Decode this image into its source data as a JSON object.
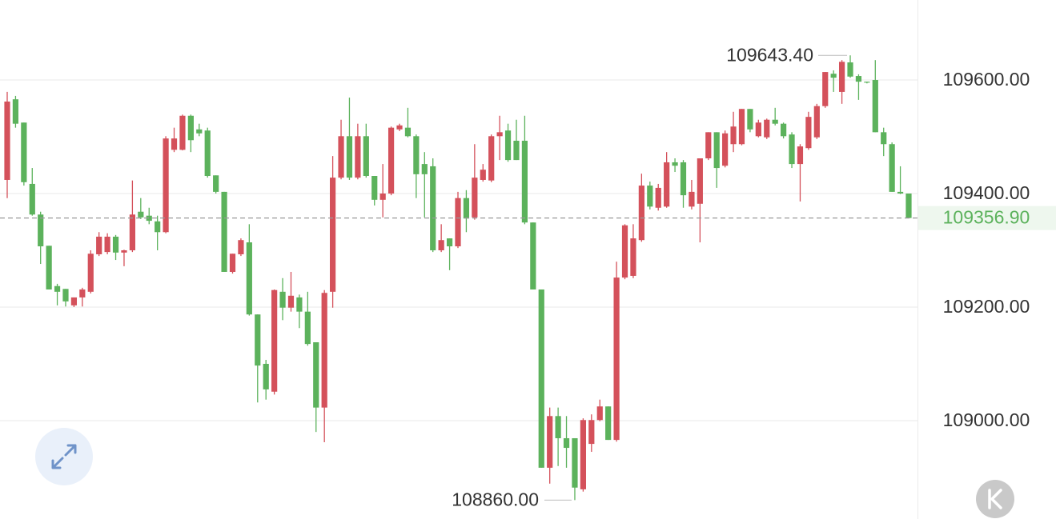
{
  "chart_data": {
    "type": "candlestick",
    "open": [
      109424,
      109566,
      109525,
      109417,
      109363,
      109308,
      109237,
      109232,
      109203,
      109217,
      109227,
      109293,
      109297,
      109324,
      109296,
      109300,
      109368,
      109361,
      109351,
      109332,
      109477,
      109477,
      109537,
      109513,
      109511,
      109432,
      109403,
      109262,
      109293,
      109314,
      109187,
      109100,
      109051,
      109227,
      109199,
      109217,
      109192,
      109138,
      109023,
      109227,
      109428,
      109501,
      109428,
      109501,
      109431,
      109389,
      109400,
      109513,
      109516,
      109501,
      109452,
      109448,
      109300,
      109321,
      109307,
      109392,
      109358,
      109424,
      109423,
      109501,
      109511,
      109493,
      109493,
      109349,
      109231,
      108917,
      109008,
      108969,
      108969,
      108879,
      108959,
      109001,
      109025,
      108966,
      109252,
      109255,
      109318,
      109414,
      109375,
      109377,
      109455,
      109455,
      109377,
      109382,
      109462,
      109508,
      109449,
      109487,
      109487,
      109549,
      109501,
      109499,
      109530,
      109523,
      109504,
      109452,
      109480,
      109499,
      109554,
      109611,
      109579,
      109631,
      109607,
      109597,
      109600,
      109508,
      109487,
      109403,
      109400
    ],
    "high": [
      109579,
      109572,
      109525,
      109445,
      109368,
      109308,
      109241,
      109232,
      109217,
      109234,
      109300,
      109332,
      109330,
      109327,
      109301,
      109423,
      109392,
      109375,
      109361,
      109501,
      109516,
      109539,
      109539,
      109523,
      109516,
      109432,
      109403,
      109294,
      109321,
      109346,
      109187,
      109107,
      109231,
      109251,
      109262,
      109222,
      109227,
      109138,
      109230,
      109466,
      109530,
      109569,
      109523,
      109523,
      109431,
      109452,
      109518,
      109523,
      109551,
      109504,
      109473,
      109462,
      109346,
      109321,
      109403,
      109406,
      109487,
      109452,
      109504,
      109537,
      109523,
      109530,
      109537,
      109349,
      109231,
      109023,
      109023,
      109008,
      108969,
      109004,
      109011,
      109037,
      109025,
      109280,
      109346,
      109346,
      109435,
      109421,
      109417,
      109473,
      109462,
      109459,
      109424,
      109462,
      109508,
      109508,
      109511,
      109544,
      109549,
      109549,
      109530,
      109532,
      109551,
      109525,
      109508,
      109487,
      109544,
      109558,
      109614,
      109617,
      109635,
      109643.4,
      109610,
      109597,
      109635,
      109516,
      109490,
      109448,
      109400
    ],
    "low": [
      109392,
      109516,
      109414,
      109361,
      109276,
      109231,
      109203,
      109201,
      109200,
      109201,
      109224,
      109290,
      109293,
      109283,
      109272,
      109297,
      109355,
      109346,
      109300,
      109330,
      109473,
      109476,
      109473,
      109501,
      109428,
      109400,
      109262,
      109259,
      109290,
      109185,
      109032,
      109037,
      109046,
      109177,
      109192,
      109163,
      109132,
      108980,
      108962,
      109199,
      109425,
      109424,
      109425,
      109428,
      109379,
      109358,
      109397,
      109510,
      109499,
      109392,
      109358,
      109297,
      109297,
      109265,
      109304,
      109332,
      109354,
      109421,
      109420,
      109459,
      109456,
      109459,
      109346,
      109231,
      108917,
      108889,
      108920,
      108917,
      108860,
      108875,
      108945,
      108999,
      108966,
      108963,
      109249,
      109251,
      109315,
      109372,
      109370,
      109375,
      109438,
      109375,
      109372,
      109314,
      109459,
      109410,
      109446,
      109473,
      109485,
      109508,
      109499,
      109496,
      109520,
      109497,
      109445,
      109386,
      109477,
      109496,
      109551,
      109579,
      109558,
      109604,
      109565,
      109594,
      109508,
      109466,
      109403,
      109399,
      109356.9
    ],
    "close": [
      109562,
      109523,
      109420,
      109363,
      109307,
      109231,
      109227,
      109210,
      109217,
      109231,
      109294,
      109324,
      109324,
      109296,
      109300,
      109363,
      109358,
      109352,
      109332,
      109497,
      109497,
      109537,
      109494,
      109506,
      109431,
      109403,
      109262,
      109294,
      109318,
      109187,
      109097,
      109055,
      109230,
      109199,
      109220,
      109192,
      109135,
      109023,
      109225,
      109428,
      109501,
      109428,
      109501,
      109431,
      109389,
      109400,
      109516,
      109520,
      109501,
      109434,
      109434,
      109300,
      109318,
      109307,
      109392,
      109356,
      109428,
      109442,
      109501,
      109508,
      109459,
      109459,
      109349,
      109231,
      108917,
      109008,
      108969,
      108952,
      108882,
      109001,
      109001,
      109025,
      108966,
      109252,
      109344,
      109321,
      109414,
      109377,
      109410,
      109455,
      109449,
      109397,
      109403,
      109462,
      109508,
      109445,
      109506,
      109518,
      109549,
      109513,
      109525,
      109530,
      109523,
      109501,
      109452,
      109483,
      109535,
      109554,
      109614,
      109604,
      109632,
      109606,
      109597,
      109596,
      109508,
      109487,
      109403,
      109400,
      109356.9
    ],
    "up_color": "#d4515b",
    "down_color": "#5cb25c",
    "ylim": [
      108826.7,
      109740.9
    ],
    "yticks": [
      {
        "value": 109000,
        "label": "109000.00"
      },
      {
        "value": 109200,
        "label": "109200.00"
      },
      {
        "value": 109400,
        "label": "109400.00"
      },
      {
        "value": 109600,
        "label": "109600.00"
      }
    ],
    "grid": true,
    "last_price": {
      "value": 109356.9,
      "label": "109356.90"
    },
    "high_label": {
      "value": 109643.4,
      "label": "109643.40"
    },
    "low_label": {
      "value": 108860,
      "label": "108860.00"
    }
  }
}
